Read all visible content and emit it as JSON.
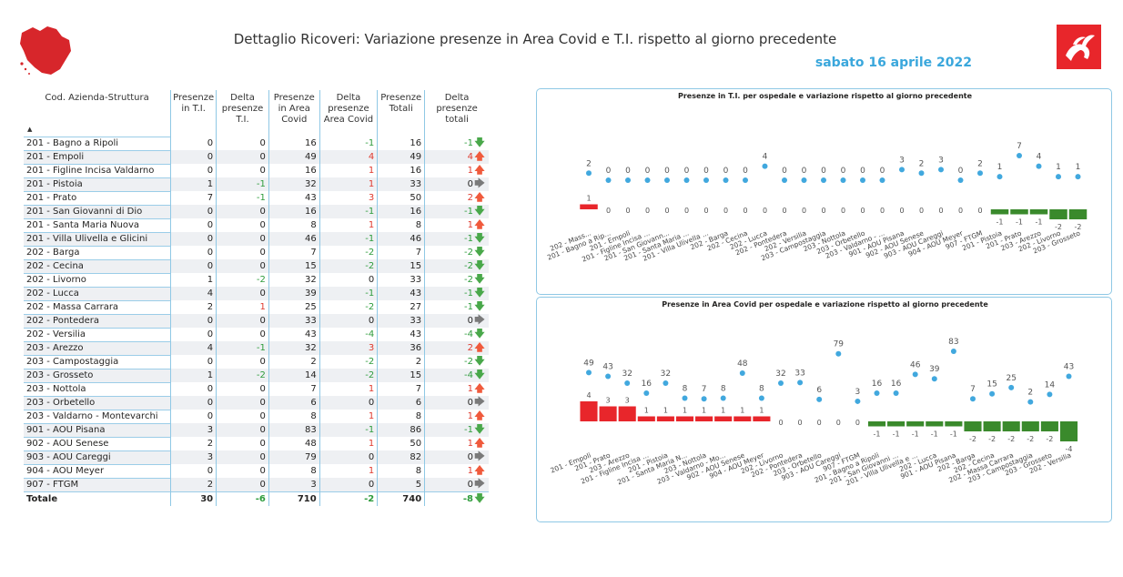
{
  "header": {
    "title": "Dettaglio Ricoveri: Variazione presenze in Area Covid e T.I. rispetto al giorno precedente",
    "date": "sabato 16 aprile 2022"
  },
  "colors": {
    "accent": "#3aa7dc",
    "positive": "#e8262b",
    "negative": "#3a8a2c",
    "dot": "#41a8de"
  },
  "table": {
    "columns": [
      "Cod. Azienda-Struttura",
      "Presenze in T.I.",
      "Delta presenze T.I.",
      "Presenze in Area Covid",
      "Delta presenze Area Covid",
      "Presenze Totali",
      "Delta presenze totali"
    ],
    "rows": [
      {
        "name": "201 - Bagno a Ripoli",
        "ti": 0,
        "dti": 0,
        "ac": 16,
        "dac": -1,
        "tot": 16,
        "dtot": -1
      },
      {
        "name": "201 - Empoli",
        "ti": 0,
        "dti": 0,
        "ac": 49,
        "dac": 4,
        "tot": 49,
        "dtot": 4
      },
      {
        "name": "201 - Figline Incisa Valdarno",
        "ti": 0,
        "dti": 0,
        "ac": 16,
        "dac": 1,
        "tot": 16,
        "dtot": 1
      },
      {
        "name": "201 - Pistoia",
        "ti": 1,
        "dti": -1,
        "ac": 32,
        "dac": 1,
        "tot": 33,
        "dtot": 0
      },
      {
        "name": "201 - Prato",
        "ti": 7,
        "dti": -1,
        "ac": 43,
        "dac": 3,
        "tot": 50,
        "dtot": 2
      },
      {
        "name": "201 - San Giovanni di Dio",
        "ti": 0,
        "dti": 0,
        "ac": 16,
        "dac": -1,
        "tot": 16,
        "dtot": -1
      },
      {
        "name": "201 - Santa Maria Nuova",
        "ti": 0,
        "dti": 0,
        "ac": 8,
        "dac": 1,
        "tot": 8,
        "dtot": 1
      },
      {
        "name": "201 - Villa Ulivella e Glicini",
        "ti": 0,
        "dti": 0,
        "ac": 46,
        "dac": -1,
        "tot": 46,
        "dtot": -1
      },
      {
        "name": "202 - Barga",
        "ti": 0,
        "dti": 0,
        "ac": 7,
        "dac": -2,
        "tot": 7,
        "dtot": -2
      },
      {
        "name": "202 - Cecina",
        "ti": 0,
        "dti": 0,
        "ac": 15,
        "dac": -2,
        "tot": 15,
        "dtot": -2
      },
      {
        "name": "202 - Livorno",
        "ti": 1,
        "dti": -2,
        "ac": 32,
        "dac": 0,
        "tot": 33,
        "dtot": -2
      },
      {
        "name": "202 - Lucca",
        "ti": 4,
        "dti": 0,
        "ac": 39,
        "dac": -1,
        "tot": 43,
        "dtot": -1
      },
      {
        "name": "202 - Massa Carrara",
        "ti": 2,
        "dti": 1,
        "ac": 25,
        "dac": -2,
        "tot": 27,
        "dtot": -1
      },
      {
        "name": "202 - Pontedera",
        "ti": 0,
        "dti": 0,
        "ac": 33,
        "dac": 0,
        "tot": 33,
        "dtot": 0
      },
      {
        "name": "202 - Versilia",
        "ti": 0,
        "dti": 0,
        "ac": 43,
        "dac": -4,
        "tot": 43,
        "dtot": -4
      },
      {
        "name": "203 - Arezzo",
        "ti": 4,
        "dti": -1,
        "ac": 32,
        "dac": 3,
        "tot": 36,
        "dtot": 2
      },
      {
        "name": "203 - Campostaggia",
        "ti": 0,
        "dti": 0,
        "ac": 2,
        "dac": -2,
        "tot": 2,
        "dtot": -2
      },
      {
        "name": "203 - Grosseto",
        "ti": 1,
        "dti": -2,
        "ac": 14,
        "dac": -2,
        "tot": 15,
        "dtot": -4
      },
      {
        "name": "203 - Nottola",
        "ti": 0,
        "dti": 0,
        "ac": 7,
        "dac": 1,
        "tot": 7,
        "dtot": 1
      },
      {
        "name": "203 - Orbetello",
        "ti": 0,
        "dti": 0,
        "ac": 6,
        "dac": 0,
        "tot": 6,
        "dtot": 0
      },
      {
        "name": "203 - Valdarno - Montevarchi",
        "ti": 0,
        "dti": 0,
        "ac": 8,
        "dac": 1,
        "tot": 8,
        "dtot": 1
      },
      {
        "name": "901 - AOU Pisana",
        "ti": 3,
        "dti": 0,
        "ac": 83,
        "dac": -1,
        "tot": 86,
        "dtot": -1
      },
      {
        "name": "902 - AOU Senese",
        "ti": 2,
        "dti": 0,
        "ac": 48,
        "dac": 1,
        "tot": 50,
        "dtot": 1
      },
      {
        "name": "903 - AOU Careggi",
        "ti": 3,
        "dti": 0,
        "ac": 79,
        "dac": 0,
        "tot": 82,
        "dtot": 0
      },
      {
        "name": "904 - AOU Meyer",
        "ti": 0,
        "dti": 0,
        "ac": 8,
        "dac": 1,
        "tot": 8,
        "dtot": 1
      },
      {
        "name": "907 - FTGM",
        "ti": 2,
        "dti": 0,
        "ac": 3,
        "dac": 0,
        "tot": 5,
        "dtot": 0
      }
    ],
    "total": {
      "name": "Totale",
      "ti": 30,
      "dti": -6,
      "ac": 710,
      "dac": -2,
      "tot": 740,
      "dtot": -8
    }
  },
  "chart_data": [
    {
      "type": "bar",
      "title": "Presenze in T.I. per ospedale e variazione rispetto al giorno precedente",
      "categories": [
        "202 - Mass...",
        "201 - Bagno a Rip...",
        "201 - Empoli",
        "201 - Figline Incisa ...",
        "201 - San Giovann...",
        "201 - Santa Maria ...",
        "201 - Villa Ulivella ...",
        "202 - Barga",
        "202 - Cecina",
        "202 - Lucca",
        "202 - Pontedera",
        "202 - Versilia",
        "203 - Campostaggia",
        "203 - Nottola",
        "203 - Orbetello",
        "203 - Valdarno - ...",
        "901 - AOU Pisana",
        "902 - AOU Senese",
        "903 - AOU Careggi",
        "904 - AOU Meyer",
        "907 - FTGM",
        "201 - Pistoia",
        "201 - Prato",
        "203 - Arezzo",
        "202 - Livorno",
        "203 - Grosseto"
      ],
      "series": [
        {
          "name": "Presenze in T.I.",
          "values": [
            2,
            0,
            0,
            0,
            0,
            0,
            0,
            0,
            0,
            4,
            0,
            0,
            0,
            0,
            0,
            0,
            3,
            2,
            3,
            0,
            2,
            1,
            7,
            4,
            1,
            1
          ]
        },
        {
          "name": "Delta presenze T.I.",
          "values": [
            1,
            0,
            0,
            0,
            0,
            0,
            0,
            0,
            0,
            0,
            0,
            0,
            0,
            0,
            0,
            0,
            0,
            0,
            0,
            0,
            0,
            -1,
            -1,
            -1,
            -2,
            -2
          ]
        }
      ]
    },
    {
      "type": "bar",
      "title": "Presenze in Area Covid per ospedale e variazione rispetto al giorno precedente",
      "categories": [
        "201 - Empoli",
        "201 - Prato",
        "203 - Arezzo",
        "201 - Figline Incisa ...",
        "201 - Pistoia",
        "201 - Santa Maria N...",
        "203 - Nottola",
        "203 - Valdarno - Mo...",
        "902 - AOU Senese",
        "904 - AOU Meyer",
        "202 - Livorno",
        "202 - Pontedera",
        "203 - Orbetello",
        "903 - AOU Careggi",
        "907 - FTGM",
        "201 - Bagno a Ripoli",
        "201 - San Giovanni ...",
        "201 - Villa Ulivella e ...",
        "202 - Lucca",
        "901 - AOU Pisana",
        "202 - Barga",
        "202 - Cecina",
        "202 - Massa Carrara",
        "203 - Campostaggia",
        "203 - Grosseto",
        "202 - Versilia"
      ],
      "series": [
        {
          "name": "Presenze in Area Covid",
          "values": [
            49,
            43,
            32,
            16,
            32,
            8,
            7,
            8,
            48,
            8,
            32,
            33,
            6,
            79,
            3,
            16,
            16,
            46,
            39,
            83,
            7,
            15,
            25,
            2,
            14,
            43
          ]
        },
        {
          "name": "Delta presenze Area Covid",
          "values": [
            4,
            3,
            3,
            1,
            1,
            1,
            1,
            1,
            1,
            1,
            0,
            0,
            0,
            0,
            0,
            -1,
            -1,
            -1,
            -1,
            -1,
            -2,
            -2,
            -2,
            -2,
            -2,
            -4
          ]
        }
      ]
    }
  ]
}
